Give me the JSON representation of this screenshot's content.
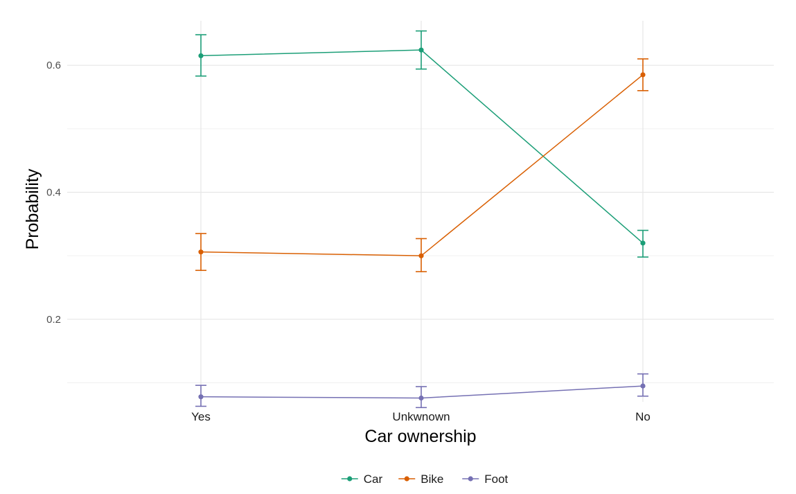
{
  "chart_data": {
    "type": "line",
    "title": "",
    "xlabel": "Car ownership",
    "ylabel": "Probability",
    "categories": [
      "Yes",
      "Unkwnown",
      "No"
    ],
    "ylim": [
      0.07,
      0.67
    ],
    "yticks": [
      0.2,
      0.4,
      0.6
    ],
    "yticks_labels": [
      "0.2",
      "0.4",
      "0.6"
    ],
    "grid": true,
    "legend_position": "bottom",
    "series": [
      {
        "name": "Car",
        "color": "#1b9e77",
        "values": [
          0.615,
          0.624,
          0.32
        ],
        "lower": [
          0.583,
          0.594,
          0.298
        ],
        "upper": [
          0.648,
          0.654,
          0.34
        ]
      },
      {
        "name": "Bike",
        "color": "#d95f02",
        "values": [
          0.306,
          0.3,
          0.585
        ],
        "lower": [
          0.277,
          0.275,
          0.56
        ],
        "upper": [
          0.335,
          0.327,
          0.61
        ]
      },
      {
        "name": "Foot",
        "color": "#7570b3",
        "values": [
          0.078,
          0.076,
          0.095
        ],
        "lower": [
          0.063,
          0.061,
          0.079
        ],
        "upper": [
          0.096,
          0.094,
          0.114
        ]
      }
    ]
  }
}
